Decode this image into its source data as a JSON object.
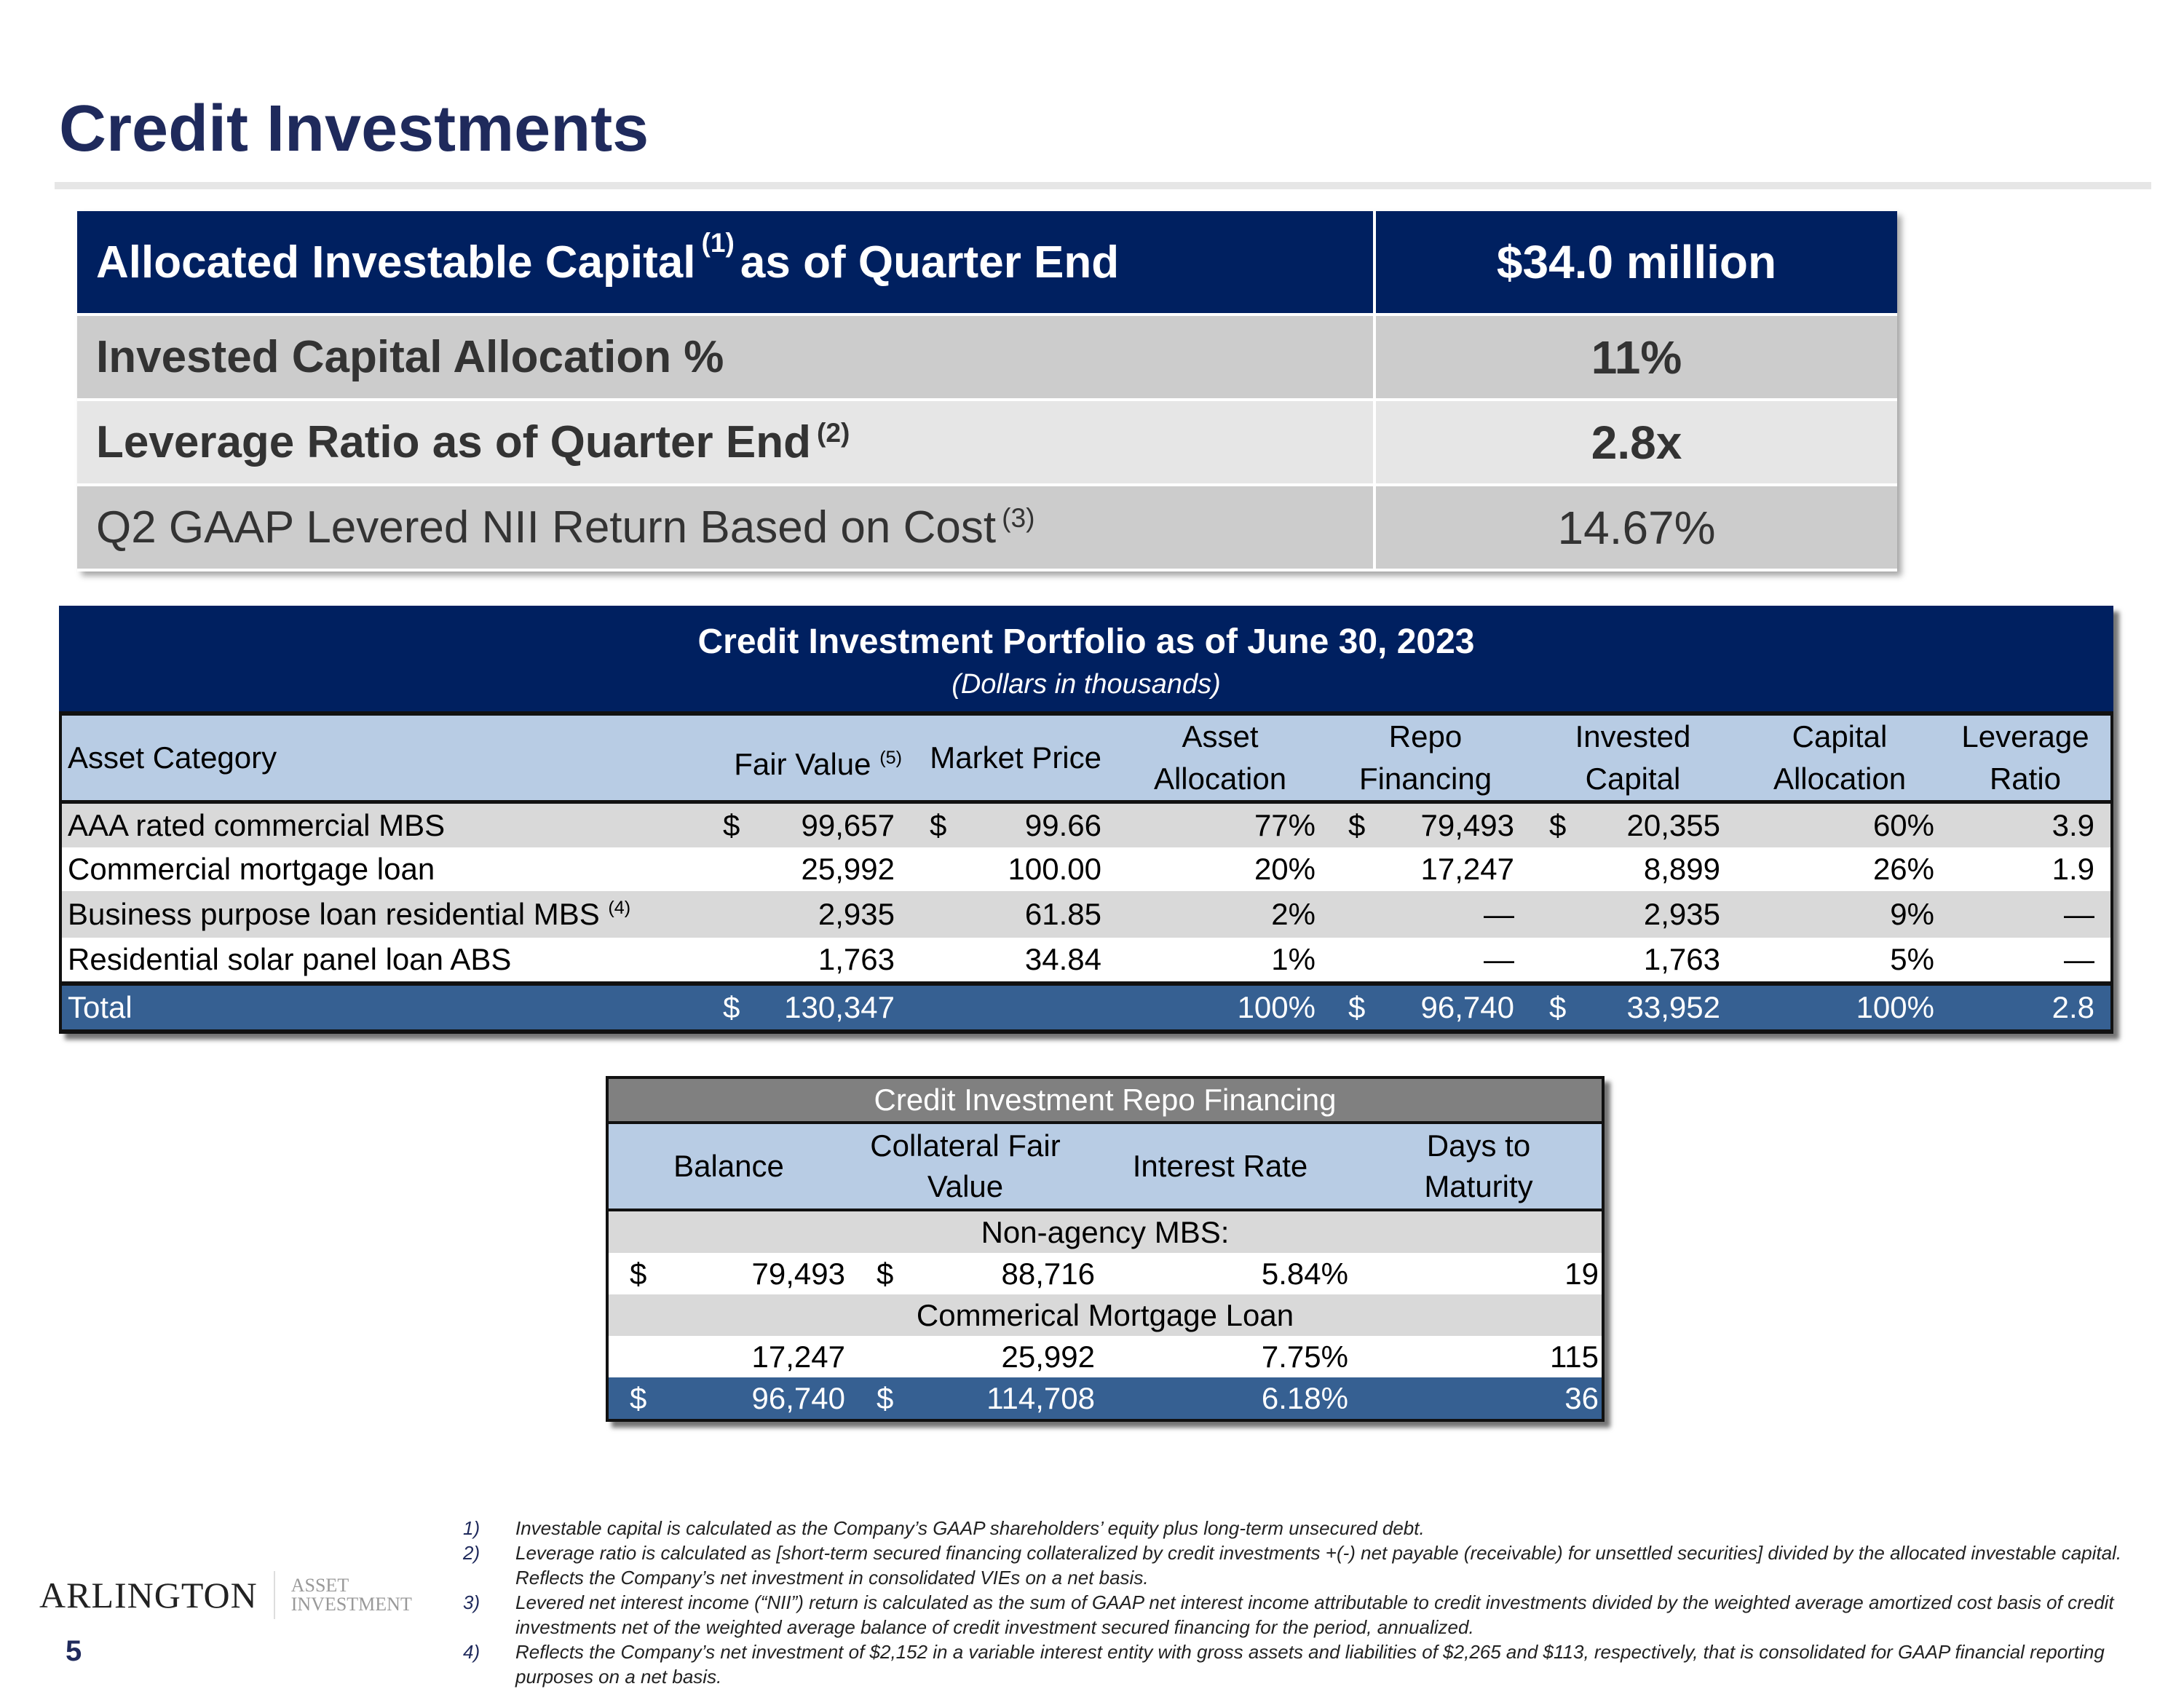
{
  "title": "Credit Investments",
  "summary": {
    "rows": [
      {
        "label": "Allocated Investable Capital",
        "sup": "(1)",
        "label_after": " as of Quarter End",
        "value": "$34.0 million"
      },
      {
        "label": "Invested Capital Allocation %",
        "sup": "",
        "label_after": "",
        "value": "11%"
      },
      {
        "label": "Leverage Ratio as of Quarter End ",
        "sup": "(2)",
        "label_after": "",
        "value": "2.8x"
      },
      {
        "label": "Q2 GAAP Levered NII Return Based on Cost ",
        "sup": "(3)",
        "label_after": "",
        "value": "14.67%"
      }
    ]
  },
  "portfolio": {
    "title": "Credit Investment Portfolio as of June 30, 2023",
    "subtitle": "(Dollars in thousands)",
    "headers": {
      "asset_category": "Asset Category",
      "fair_value": "Fair Value ",
      "fair_value_sup": "(5)",
      "market_price": "Market Price",
      "asset_allocation": [
        "Asset",
        "Allocation"
      ],
      "repo_financing": [
        "Repo",
        "Financing"
      ],
      "invested_capital": [
        "Invested",
        "Capital"
      ],
      "capital_allocation": [
        "Capital",
        "Allocation"
      ],
      "leverage_ratio": [
        "Leverage",
        "Ratio"
      ]
    },
    "rows": [
      {
        "category": "AAA rated commercial MBS",
        "sup": "",
        "fv_cur": "$",
        "fair_value": "99,657",
        "mp_cur": "$",
        "market_price": "99.66",
        "asset_allocation": "77%",
        "repo_cur": "$",
        "repo_financing": "79,493",
        "ic_cur": "$",
        "invested_capital": "20,355",
        "capital_allocation": "60%",
        "leverage_ratio": "3.9"
      },
      {
        "category": "Commercial mortgage loan",
        "sup": "",
        "fv_cur": "",
        "fair_value": "25,992",
        "mp_cur": "",
        "market_price": "100.00",
        "asset_allocation": "20%",
        "repo_cur": "",
        "repo_financing": "17,247",
        "ic_cur": "",
        "invested_capital": "8,899",
        "capital_allocation": "26%",
        "leverage_ratio": "1.9"
      },
      {
        "category": "Business purpose loan residential MBS ",
        "sup": "(4)",
        "fv_cur": "",
        "fair_value": "2,935",
        "mp_cur": "",
        "market_price": "61.85",
        "asset_allocation": "2%",
        "repo_cur": "",
        "repo_financing": "—",
        "ic_cur": "",
        "invested_capital": "2,935",
        "capital_allocation": "9%",
        "leverage_ratio": "—"
      },
      {
        "category": "Residential solar panel loan ABS",
        "sup": "",
        "fv_cur": "",
        "fair_value": "1,763",
        "mp_cur": "",
        "market_price": "34.84",
        "asset_allocation": "1%",
        "repo_cur": "",
        "repo_financing": "—",
        "ic_cur": "",
        "invested_capital": "1,763",
        "capital_allocation": "5%",
        "leverage_ratio": "—"
      }
    ],
    "total": {
      "category": "Total",
      "sup": "",
      "fv_cur": "$",
      "fair_value": "130,347",
      "mp_cur": "",
      "market_price": "",
      "asset_allocation": "100%",
      "repo_cur": "$",
      "repo_financing": "96,740",
      "ic_cur": "$",
      "invested_capital": "33,952",
      "capital_allocation": "100%",
      "leverage_ratio": "2.8"
    }
  },
  "repo": {
    "title": "Credit Investment Repo Financing",
    "headers": {
      "balance": "Balance",
      "collateral": [
        "Collateral Fair",
        "Value"
      ],
      "interest_rate": "Interest Rate",
      "days": [
        "Days to",
        "Maturity"
      ]
    },
    "sections": [
      {
        "label": "Non-agency MBS:",
        "row": {
          "bal_cur": "$",
          "balance": "79,493",
          "col_cur": "$",
          "collateral": "88,716",
          "rate": "5.84%",
          "days": "19"
        }
      },
      {
        "label": "Commerical Mortgage Loan",
        "row": {
          "bal_cur": "",
          "balance": "17,247",
          "col_cur": "",
          "collateral": "25,992",
          "rate": "7.75%",
          "days": "115"
        }
      }
    ],
    "total": {
      "bal_cur": "$",
      "balance": "96,740",
      "col_cur": "$",
      "collateral": "114,708",
      "rate": "6.18%",
      "days": "36"
    }
  },
  "footnotes": [
    {
      "num": "1)",
      "text": "Investable capital is calculated as the Company’s GAAP shareholders’ equity plus long-term unsecured debt."
    },
    {
      "num": "2)",
      "text": "Leverage ratio is calculated as [short-term secured financing collateralized by credit investments +(-) net payable (receivable) for unsettled securities] divided by the allocated investable capital.  Reflects the Company’s net investment in consolidated VIEs on a net basis."
    },
    {
      "num": "3)",
      "text": "Levered net interest income (“NII”) return is calculated as the sum of GAAP net interest income attributable to credit investments divided by the weighted average amortized cost basis of credit investments net of the weighted average balance of credit investment secured financing for the period, annualized."
    },
    {
      "num": "4)",
      "text": "Reflects the Company’s net investment of $2,152 in a variable interest entity with gross assets and liabilities of $2,265 and $113, respectively, that is consolidated for GAAP financial reporting purposes on a net basis."
    }
  ],
  "logo": {
    "main": "ARLINGTON",
    "sub": [
      "ASSET",
      "INVESTMENT"
    ]
  },
  "page_number": "5",
  "colors": {
    "navy": "#002060",
    "header_blue": "#b8cce4",
    "total_blue": "#366092",
    "title": "#1f2a5c"
  }
}
